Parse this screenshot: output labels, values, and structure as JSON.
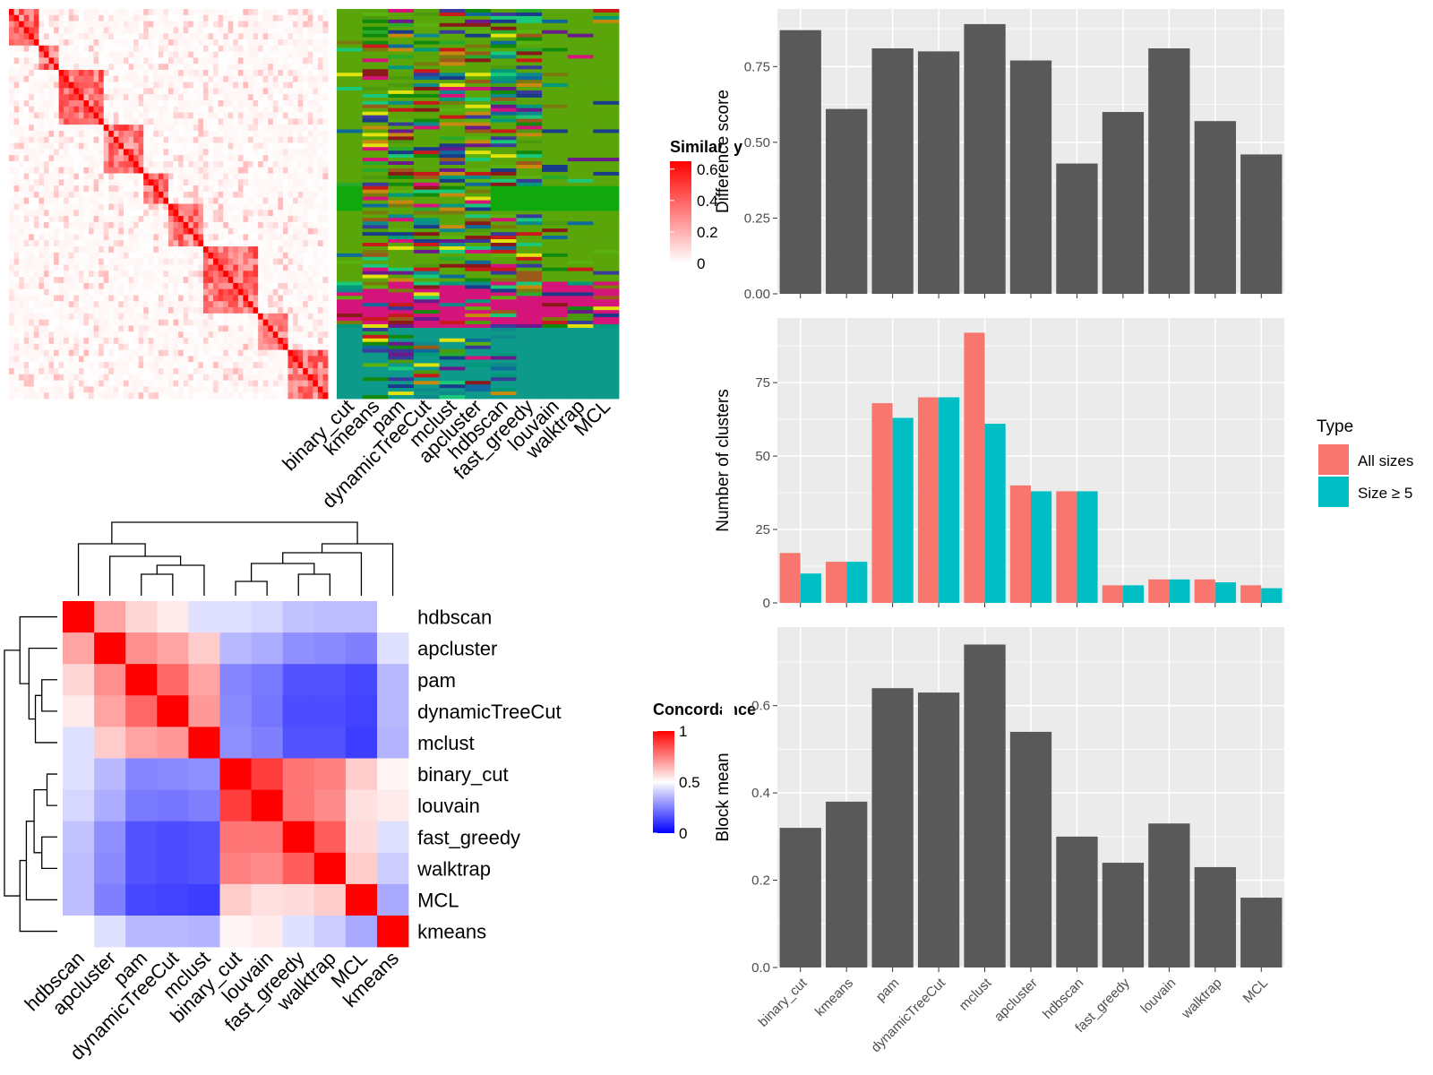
{
  "colors": {
    "panel_bg": "#EBEBEB",
    "bar_gray": "#595959",
    "all_sizes": "#F8766D",
    "size_ge5": "#00BFC4",
    "sim_high": "#FF0000",
    "sim_low": "#FFFFFF",
    "conc_high": "#FF0000",
    "conc_mid": "#FFFFFF",
    "conc_low": "#0000FF"
  },
  "similarity_heatmap": {
    "legend_title": "Similarity",
    "legend_ticks": [
      "0.6",
      "0.4",
      "0.2",
      "0"
    ],
    "legend_tick_values": [
      0.6,
      0.4,
      0.2,
      0
    ],
    "block_sizes": [
      32,
      20,
      48,
      42,
      28,
      34,
      56,
      30,
      36
    ],
    "max_value": 0.65
  },
  "cluster_assignment_panel": {
    "methods": [
      "binary_cut",
      "kmeans",
      "pam",
      "dynamicTreeCut",
      "mclust",
      "apcluster",
      "hdbscan",
      "fast_greedy",
      "louvain",
      "walktrap",
      "MCL"
    ]
  },
  "concordance_heatmap": {
    "legend_title": "Concordance",
    "legend_ticks": [
      "1",
      "0.5",
      "0"
    ],
    "legend_tick_values": [
      1,
      0.5,
      0
    ],
    "row_labels": [
      "hdbscan",
      "apcluster",
      "pam",
      "dynamicTreeCut",
      "mclust",
      "binary_cut",
      "louvain",
      "fast_greedy",
      "walktrap",
      "MCL",
      "kmeans"
    ],
    "col_labels": [
      "hdbscan",
      "apcluster",
      "pam",
      "dynamicTreeCut",
      "mclust",
      "binary_cut",
      "louvain",
      "fast_greedy",
      "walktrap",
      "MCL",
      "kmeans"
    ],
    "matrix": [
      [
        1.0,
        0.68,
        0.58,
        0.54,
        0.44,
        0.44,
        0.42,
        0.38,
        0.37,
        0.37,
        0.5
      ],
      [
        0.68,
        1.0,
        0.72,
        0.68,
        0.6,
        0.36,
        0.34,
        0.28,
        0.27,
        0.25,
        0.44
      ],
      [
        0.58,
        0.72,
        1.0,
        0.8,
        0.68,
        0.26,
        0.24,
        0.16,
        0.16,
        0.14,
        0.36
      ],
      [
        0.54,
        0.68,
        0.8,
        1.0,
        0.7,
        0.27,
        0.23,
        0.15,
        0.15,
        0.13,
        0.36
      ],
      [
        0.44,
        0.6,
        0.68,
        0.7,
        1.0,
        0.28,
        0.25,
        0.16,
        0.16,
        0.12,
        0.35
      ],
      [
        0.44,
        0.36,
        0.26,
        0.27,
        0.28,
        1.0,
        0.88,
        0.77,
        0.75,
        0.6,
        0.52
      ],
      [
        0.42,
        0.34,
        0.24,
        0.23,
        0.25,
        0.88,
        1.0,
        0.77,
        0.73,
        0.56,
        0.54
      ],
      [
        0.38,
        0.28,
        0.16,
        0.15,
        0.16,
        0.77,
        0.77,
        1.0,
        0.82,
        0.57,
        0.44
      ],
      [
        0.37,
        0.27,
        0.16,
        0.15,
        0.16,
        0.75,
        0.73,
        0.82,
        1.0,
        0.6,
        0.4
      ],
      [
        0.37,
        0.25,
        0.14,
        0.13,
        0.12,
        0.6,
        0.56,
        0.57,
        0.6,
        1.0,
        0.33
      ],
      [
        0.5,
        0.44,
        0.36,
        0.36,
        0.35,
        0.52,
        0.54,
        0.44,
        0.4,
        0.33,
        1.0
      ]
    ]
  },
  "chart_data": [
    {
      "type": "bar",
      "categories": [
        "binary_cut",
        "kmeans",
        "pam",
        "dynamicTreeCut",
        "mclust",
        "apcluster",
        "hdbscan",
        "fast_greedy",
        "louvain",
        "walktrap",
        "MCL"
      ],
      "values": [
        0.87,
        0.61,
        0.81,
        0.8,
        0.89,
        0.77,
        0.43,
        0.6,
        0.81,
        0.57,
        0.46
      ],
      "ylabel": "Difference score",
      "yticks": [
        "0.00",
        "0.25",
        "0.50",
        "0.75"
      ],
      "ytick_values": [
        0,
        0.25,
        0.5,
        0.75
      ],
      "ylim": [
        0,
        0.94
      ]
    },
    {
      "type": "bar",
      "categories": [
        "binary_cut",
        "kmeans",
        "pam",
        "dynamicTreeCut",
        "mclust",
        "apcluster",
        "hdbscan",
        "fast_greedy",
        "louvain",
        "walktrap",
        "MCL"
      ],
      "series": [
        {
          "name": "All sizes",
          "values": [
            17,
            14,
            68,
            70,
            92,
            40,
            38,
            6,
            8,
            8,
            6
          ]
        },
        {
          "name": "Size ≥ 5",
          "values": [
            10,
            14,
            63,
            70,
            61,
            38,
            38,
            6,
            8,
            7,
            5
          ]
        }
      ],
      "ylabel": "Number of clusters",
      "yticks": [
        "0",
        "25",
        "50",
        "75"
      ],
      "ytick_values": [
        0,
        25,
        50,
        75
      ],
      "ylim": [
        0,
        97
      ],
      "legend_title": "Type",
      "legend_position": "right"
    },
    {
      "type": "bar",
      "categories": [
        "binary_cut",
        "kmeans",
        "pam",
        "dynamicTreeCut",
        "mclust",
        "apcluster",
        "hdbscan",
        "fast_greedy",
        "louvain",
        "walktrap",
        "MCL"
      ],
      "values": [
        0.32,
        0.38,
        0.64,
        0.63,
        0.74,
        0.54,
        0.3,
        0.24,
        0.33,
        0.23,
        0.16
      ],
      "ylabel": "Block mean",
      "yticks": [
        "0.0",
        "0.2",
        "0.4",
        "0.6"
      ],
      "ytick_values": [
        0,
        0.2,
        0.4,
        0.6
      ],
      "ylim": [
        0,
        0.78
      ]
    }
  ]
}
